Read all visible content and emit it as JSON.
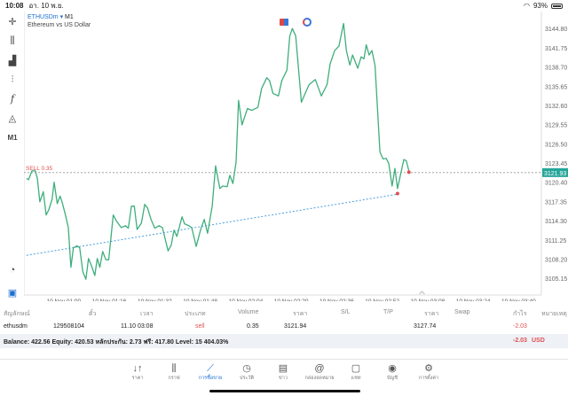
{
  "status_bar": {
    "time": "10:08",
    "date": "อา. 10 พ.ย.",
    "battery": "93%",
    "battery_level": 93
  },
  "symbol": {
    "name": "ETHUSDm",
    "arrow": "▾",
    "timeframe": "M1",
    "description": "Ethereum vs US Dollar"
  },
  "toolbar": {
    "timeframe_label": "M1"
  },
  "order_line": {
    "label": "SELL 0.35",
    "price_label": "3121.93"
  },
  "colors": {
    "line": "#3fae7c",
    "sell": "#e05050",
    "accent": "#1e6fd0",
    "trend": "#4a9ee0",
    "price_tag": "#26a69a"
  },
  "chart_data": {
    "type": "line",
    "title": "ETHUSDm, M1",
    "x_unit": "minutes since 10 Nov 00:00",
    "xlim": [
      46,
      228
    ],
    "ylim": [
      3102.5,
      3147.5
    ],
    "x_ticks": [
      {
        "v": 60,
        "label": "10 Nov 01:00"
      },
      {
        "v": 76,
        "label": "10 Nov 01:16"
      },
      {
        "v": 92,
        "label": "10 Nov 01:32"
      },
      {
        "v": 108,
        "label": "10 Nov 01:48"
      },
      {
        "v": 124,
        "label": "10 Nov 02:04"
      },
      {
        "v": 140,
        "label": "10 Nov 02:20"
      },
      {
        "v": 156,
        "label": "10 Nov 02:36"
      },
      {
        "v": 172,
        "label": "10 Nov 02:52"
      },
      {
        "v": 188,
        "label": "10 Nov 03:08"
      },
      {
        "v": 204,
        "label": "10 Nov 03:24"
      },
      {
        "v": 220,
        "label": "10 Nov 03:40"
      }
    ],
    "y_ticks": [
      "3144.80",
      "3141.75",
      "3138.70",
      "3135.65",
      "3132.60",
      "3129.55",
      "3126.50",
      "3123.45",
      "3120.40",
      "3117.35",
      "3114.30",
      "3111.25",
      "3108.20",
      "3105.15"
    ],
    "x": [
      46.9,
      47.6,
      48.8,
      50.0,
      50.7,
      51.6,
      52.8,
      53.8,
      54.7,
      55.9,
      56.6,
      57.7,
      58.7,
      59.4,
      60.5,
      61.6,
      62.5,
      63.4,
      64.7,
      65.6,
      66.7,
      67.8,
      68.7,
      69.8,
      70.9,
      71.8,
      72.7,
      73.7,
      74.8,
      75.8,
      77.4,
      78.6,
      80.2,
      81.7,
      82.7,
      83.8,
      84.8,
      85.8,
      87.3,
      88.5,
      89.5,
      90.7,
      92.0,
      93.5,
      94.7,
      96.7,
      97.8,
      98.8,
      99.8,
      101.6,
      102.5,
      104.0,
      105.0,
      106.6,
      108.1,
      109.4,
      110.6,
      112.2,
      113.4,
      114.9,
      115.9,
      117.5,
      118.4,
      119.5,
      120.6,
      121.5,
      122.7,
      124.6,
      126.2,
      128.3,
      129.6,
      131.4,
      132.4,
      133.6,
      135.5,
      136.7,
      138.5,
      139.5,
      140.4,
      141.6,
      143.6,
      144.8,
      146.3,
      148.5,
      150.6,
      152.6,
      153.7,
      155.3,
      156.8,
      158.4,
      159.4,
      160.6,
      161.6,
      163.4,
      164.6,
      165.6,
      166.4,
      167.4,
      168.4,
      169.5,
      171.2,
      172.3,
      173.4,
      174.3,
      175.5,
      176.5,
      177.4,
      179.6,
      180.5,
      181.4
    ],
    "y": [
      3121.0,
      3120.8,
      3122.2,
      3122.2,
      3121.0,
      3117.3,
      3118.9,
      3115.2,
      3116.0,
      3117.7,
      3120.4,
      3117.0,
      3118.2,
      3117.3,
      3115.4,
      3113.2,
      3106.9,
      3110.0,
      3110.3,
      3110.0,
      3106.2,
      3105.0,
      3108.3,
      3107.1,
      3105.6,
      3108.3,
      3106.9,
      3109.4,
      3108.1,
      3108.1,
      3115.2,
      3114.2,
      3113.2,
      3113.5,
      3113.1,
      3116.6,
      3116.6,
      3112.9,
      3113.9,
      3116.9,
      3116.3,
      3114.5,
      3113.1,
      3113.5,
      3113.2,
      3109.5,
      3110.4,
      3112.8,
      3111.8,
      3114.9,
      3113.8,
      3113.5,
      3113.2,
      3110.2,
      3112.8,
      3114.5,
      3112.3,
      3116.6,
      3123.0,
      3119.4,
      3119.8,
      3119.7,
      3121.5,
      3120.2,
      3123.6,
      3133.4,
      3129.5,
      3132.1,
      3131.8,
      3132.3,
      3135.3,
      3137.0,
      3136.5,
      3134.5,
      3134.1,
      3136.5,
      3138.2,
      3143.6,
      3144.8,
      3143.6,
      3133.1,
      3134.4,
      3135.9,
      3136.7,
      3134.1,
      3135.9,
      3139.2,
      3141.3,
      3142.0,
      3145.6,
      3141.3,
      3139.0,
      3140.6,
      3138.5,
      3140.3,
      3140.0,
      3142.2,
      3140.6,
      3141.3,
      3138.9,
      3125.2,
      3124.1,
      3124.2,
      3123.4,
      3119.8,
      3122.6,
      3119.4,
      3124.0,
      3123.8,
      3122.2
    ],
    "sell_price": 3121.93,
    "trend_line": {
      "x": [
        46.9,
        177.4
      ],
      "y": [
        3108.8,
        3118.5
      ]
    },
    "markers": [
      {
        "x": 177.4,
        "y": 3118.6
      },
      {
        "x": 181.4,
        "y": 3122.0
      }
    ]
  },
  "table": {
    "headers": [
      "สัญลักษณ์",
      "ตั๋ว",
      "เวลา",
      "ประเภท",
      "Volume",
      "ราคา",
      "S/L",
      "T/P",
      "ราคา",
      "Swap",
      "กำไร",
      "หมายเหตุ"
    ],
    "row": {
      "symbol": "ethusdm",
      "ticket": "129508104",
      "time": "11.10 03:08",
      "type": "sell",
      "volume": "0.35",
      "open_price": "3121.94",
      "current_price": "3127.74",
      "profit": "-2.03"
    },
    "balance_text": "Balance: 422.56 Equity: 420.53 หลักประกัน: 2.73 ฟรี: 417.80 Level: 15 404.03%",
    "total_profit": "-2.03",
    "currency": "USD"
  },
  "tabs": [
    {
      "label": "ราคา",
      "icon": "↓↑"
    },
    {
      "label": "กราฟ",
      "icon": "⫼"
    },
    {
      "label": "การซื้อขาย",
      "icon": "⟋"
    },
    {
      "label": "ประวัติ",
      "icon": "◷"
    },
    {
      "label": "ข่าว",
      "icon": "▤"
    },
    {
      "label": "กล่องจดหมาย",
      "icon": "@"
    },
    {
      "label": "แชท",
      "icon": "▢"
    },
    {
      "label": "บัญชี",
      "icon": "◉"
    },
    {
      "label": "การตั้งค่า",
      "icon": "⚙"
    }
  ]
}
